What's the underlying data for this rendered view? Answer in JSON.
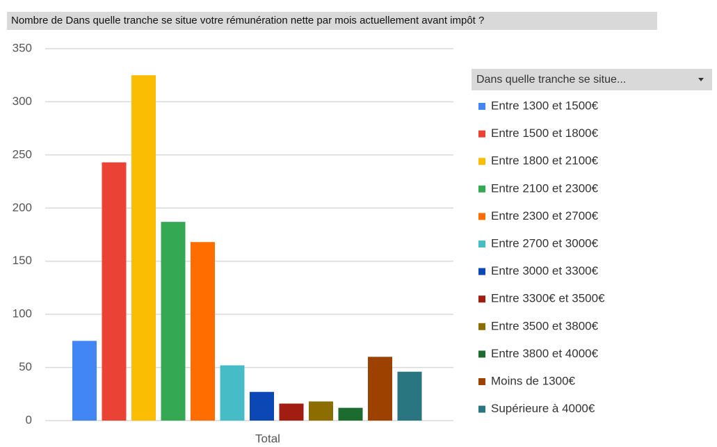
{
  "chart_data": {
    "type": "bar",
    "title": "Nombre de Dans quelle tranche se situe votre rémunération nette par mois actuellement avant impôt ?",
    "legend_title": "Dans quelle tranche se situe...",
    "categories": [
      "Total"
    ],
    "series": [
      {
        "name": "Entre 1300 et 1500€",
        "color": "#4285f4",
        "values": [
          75
        ]
      },
      {
        "name": "Entre 1500 et 1800€",
        "color": "#ea4335",
        "values": [
          243
        ]
      },
      {
        "name": "Entre 1800 et 2100€",
        "color": "#fbbc04",
        "values": [
          325
        ]
      },
      {
        "name": "Entre 2100 et 2300€",
        "color": "#34a853",
        "values": [
          187
        ]
      },
      {
        "name": "Entre 2300 et 2700€",
        "color": "#ff6d01",
        "values": [
          168
        ]
      },
      {
        "name": "Entre 2700 et 3000€",
        "color": "#46bdc6",
        "values": [
          52
        ]
      },
      {
        "name": "Entre 3000 et 3300€",
        "color": "#0b48b5",
        "values": [
          27
        ]
      },
      {
        "name": "Entre 3300€ et 3500€",
        "color": "#a11d12",
        "values": [
          16
        ]
      },
      {
        "name": "Entre 3500 et 3800€",
        "color": "#8c6d00",
        "values": [
          18
        ]
      },
      {
        "name": "Entre 3800 et 4000€",
        "color": "#1c6b2f",
        "values": [
          12
        ]
      },
      {
        "name": "Moins de 1300€",
        "color": "#9c4100",
        "values": [
          60
        ]
      },
      {
        "name": "Supérieure à 4000€",
        "color": "#2a7680",
        "values": [
          46
        ]
      }
    ],
    "ylim": [
      0,
      350
    ],
    "yticks": [
      0,
      50,
      100,
      150,
      200,
      250,
      300,
      350
    ],
    "grid": true
  }
}
